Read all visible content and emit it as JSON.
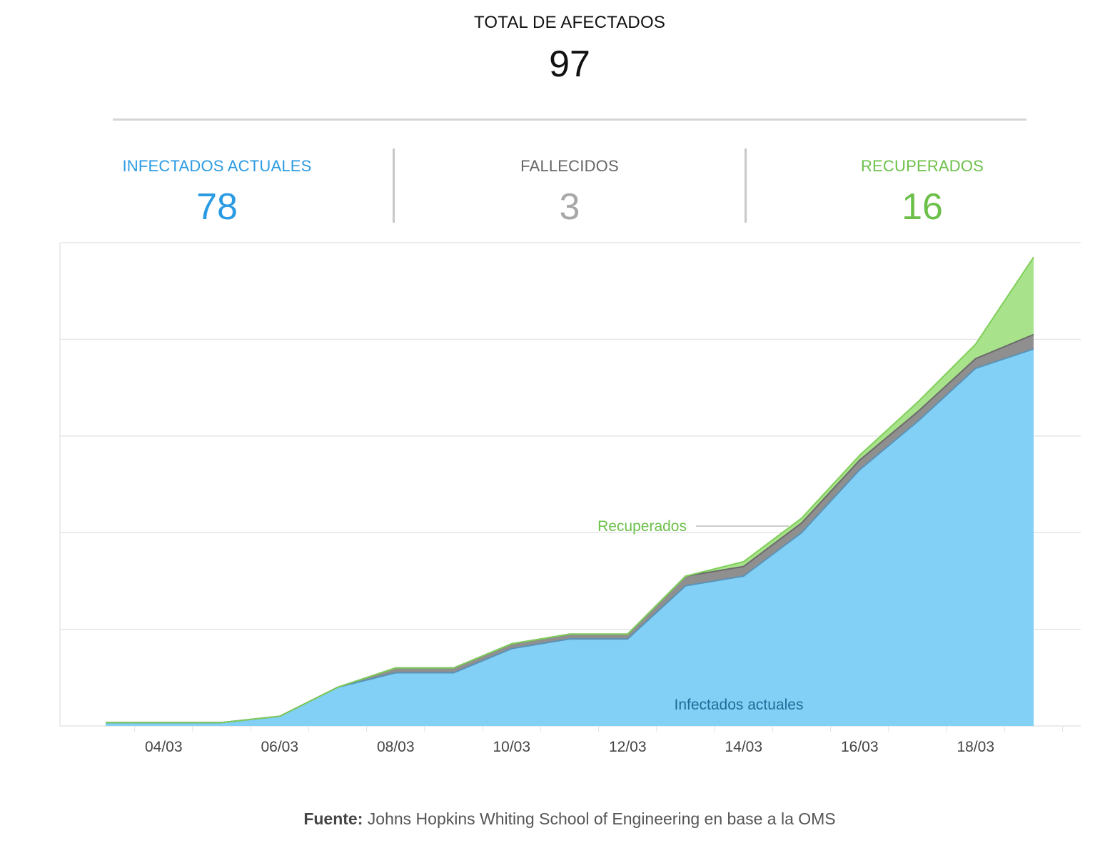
{
  "summary": {
    "total_label": "TOTAL DE AFECTADOS",
    "total_value": "97",
    "stats": [
      {
        "label": "INFECTADOS ACTUALES",
        "value": "78",
        "color": "#2b9be3"
      },
      {
        "label": "FALLECIDOS",
        "value": "3",
        "color": "#a7a7a7"
      },
      {
        "label": "RECUPERADOS",
        "value": "16",
        "color": "#6cc04a"
      }
    ]
  },
  "chart_data": {
    "type": "area",
    "stacked": true,
    "title": "",
    "xlabel": "",
    "ylabel": "",
    "x": [
      "03/03",
      "04/03",
      "05/03",
      "06/03",
      "07/03",
      "08/03",
      "09/03",
      "10/03",
      "11/03",
      "12/03",
      "13/03",
      "14/03",
      "15/03",
      "16/03",
      "17/03",
      "18/03",
      "19/03"
    ],
    "x_tick_labels": [
      "04/03",
      "06/03",
      "08/03",
      "10/03",
      "12/03",
      "14/03",
      "16/03",
      "18/03"
    ],
    "ylim": [
      0,
      100
    ],
    "gridlines_y": [
      20,
      40,
      60,
      80,
      100
    ],
    "series": [
      {
        "name": "Infectados actuales",
        "color": "#82d0f5",
        "values": [
          0.7,
          0.7,
          0.7,
          2,
          8,
          11,
          11,
          16,
          18,
          18,
          29,
          31,
          40,
          53,
          63,
          74,
          78
        ]
      },
      {
        "name": "",
        "color": "#8f8f8f",
        "values": [
          0,
          0,
          0,
          0,
          0,
          1,
          1,
          1,
          1,
          1,
          2,
          2,
          2,
          2,
          2,
          2,
          3
        ]
      },
      {
        "name": "Recuperados",
        "color": "#a8e28a",
        "values": [
          0,
          0,
          0,
          0,
          0,
          0,
          0,
          0,
          0,
          0,
          0,
          1,
          1,
          1,
          2,
          3,
          16
        ]
      }
    ],
    "annotations": [
      {
        "text": "Recuperados",
        "color": "#6cc04a"
      },
      {
        "text": "Infectados actuales",
        "color": "#1f6c99"
      }
    ]
  },
  "source": {
    "label": "Fuente:",
    "text": " Johns Hopkins Whiting School of Engineering en base a la OMS"
  }
}
